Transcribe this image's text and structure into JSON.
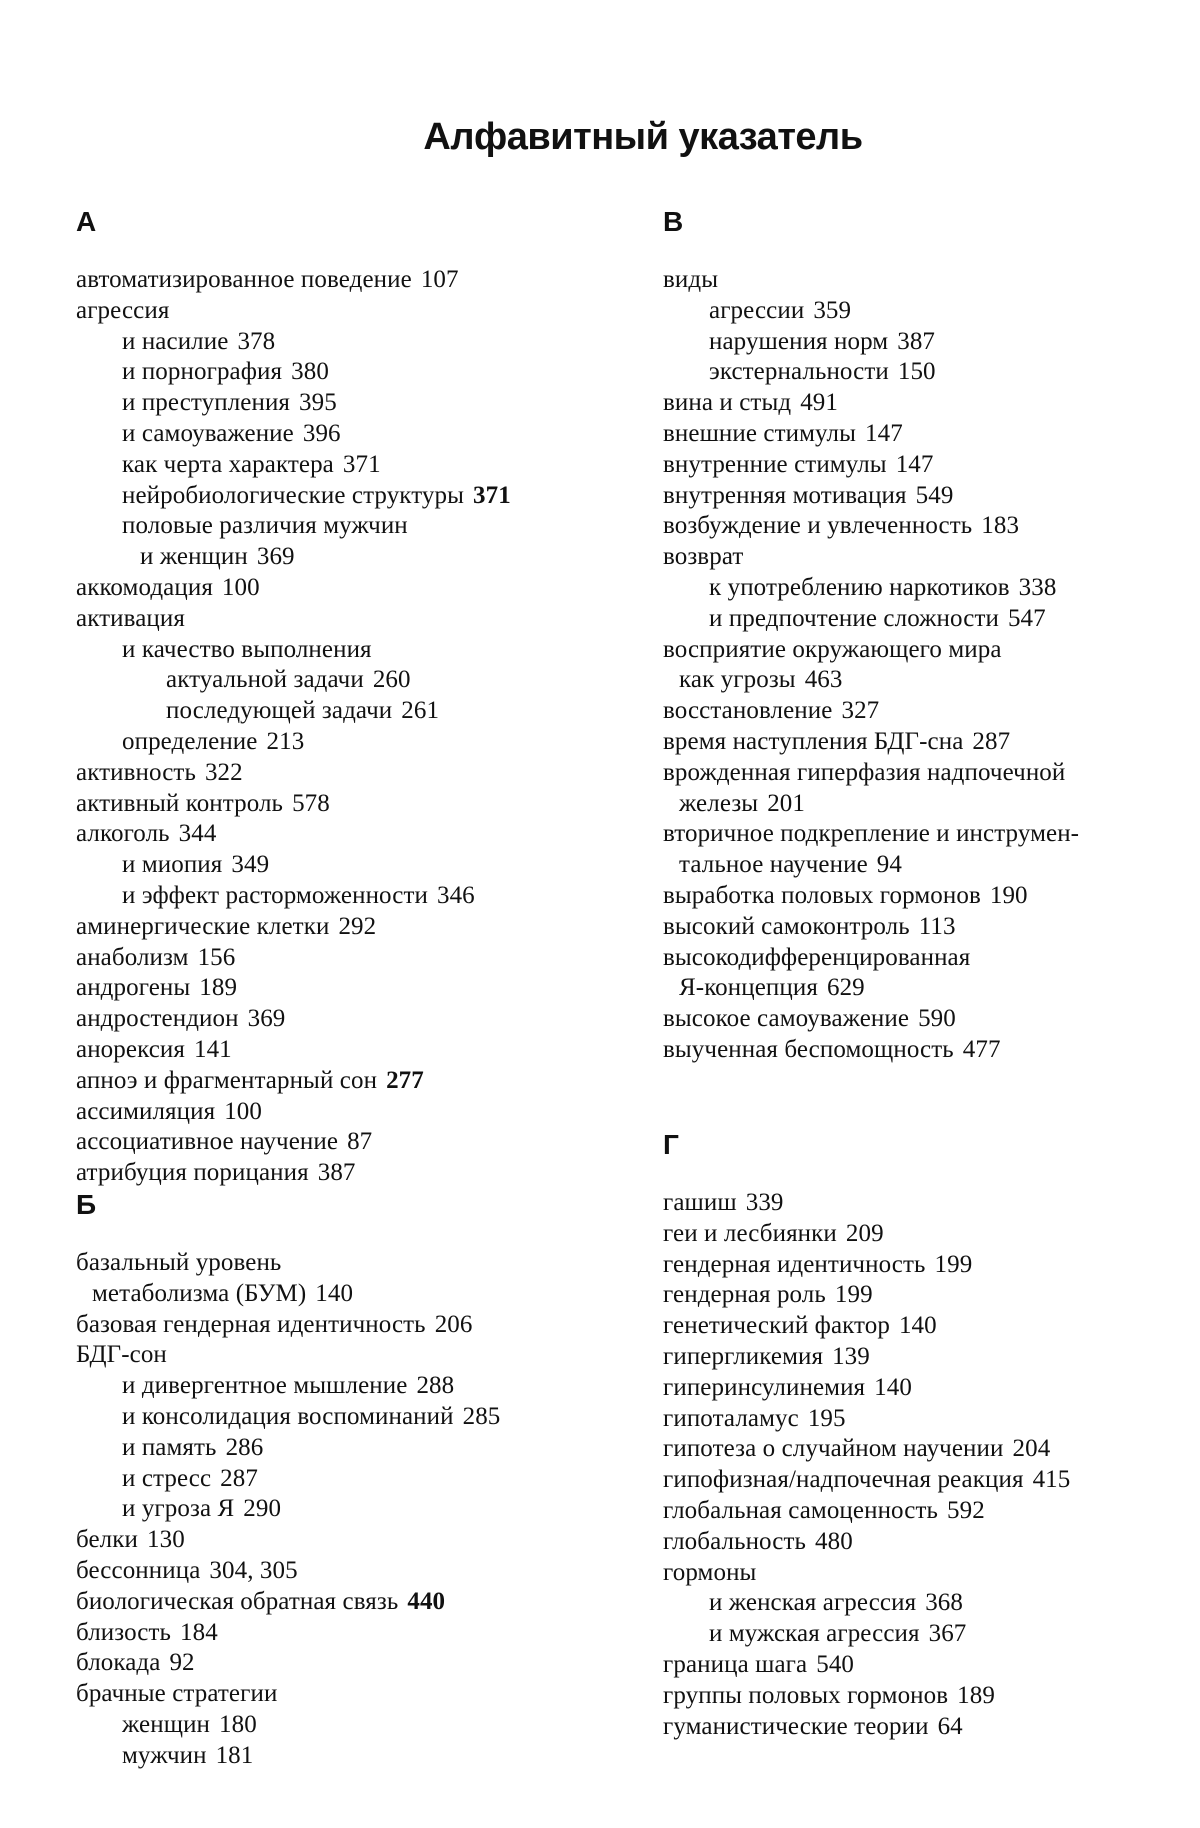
{
  "title": "Алфавитный указатель",
  "sections": [
    {
      "letter": "А",
      "entries": [
        {
          "level": "0",
          "term": "автоматизированное поведение",
          "pages": "107"
        },
        {
          "level": "0",
          "term": "агрессия",
          "pages": ""
        },
        {
          "level": "1",
          "term": "и насилие",
          "pages": "378"
        },
        {
          "level": "1",
          "term": "и порнография",
          "pages": "380"
        },
        {
          "level": "1",
          "term": "и преступления",
          "pages": "395"
        },
        {
          "level": "1",
          "term": "и самоуважение",
          "pages": "396"
        },
        {
          "level": "1",
          "term": "как черта характера",
          "pages": "371"
        },
        {
          "level": "1",
          "term": "нейробиологические структуры",
          "pages": "371",
          "bold": true
        },
        {
          "level": "1",
          "term": "половые различия мужчин",
          "pages": ""
        },
        {
          "level": "c1",
          "term": "и женщин",
          "pages": "369"
        },
        {
          "level": "0",
          "term": "аккомодация",
          "pages": "100"
        },
        {
          "level": "0",
          "term": "активация",
          "pages": ""
        },
        {
          "level": "1",
          "term": "и качество выполнения",
          "pages": ""
        },
        {
          "level": "2",
          "term": "актуальной задачи",
          "pages": "260"
        },
        {
          "level": "2",
          "term": "последующей задачи",
          "pages": "261"
        },
        {
          "level": "1",
          "term": "определение",
          "pages": "213"
        },
        {
          "level": "0",
          "term": "активность",
          "pages": "322"
        },
        {
          "level": "0",
          "term": "активный контроль",
          "pages": "578"
        },
        {
          "level": "0",
          "term": "алкоголь",
          "pages": "344"
        },
        {
          "level": "1",
          "term": "и миопия",
          "pages": "349"
        },
        {
          "level": "1",
          "term": "и эффект расторможенности",
          "pages": "346"
        },
        {
          "level": "0",
          "term": "аминергические клетки",
          "pages": "292"
        },
        {
          "level": "0",
          "term": "анаболизм",
          "pages": "156"
        },
        {
          "level": "0",
          "term": "андрогены",
          "pages": "189"
        },
        {
          "level": "0",
          "term": "андростендион",
          "pages": "369"
        },
        {
          "level": "0",
          "term": "анорексия",
          "pages": "141"
        },
        {
          "level": "0",
          "term": "апноэ и фрагментарный сон",
          "pages": "277",
          "bold": true
        },
        {
          "level": "0",
          "term": "ассимиляция",
          "pages": "100"
        },
        {
          "level": "0",
          "term": "ассоциативное научение",
          "pages": "87"
        },
        {
          "level": "0",
          "term": "атрибуция порицания",
          "pages": "387"
        }
      ]
    },
    {
      "letter": "Б",
      "entries": [
        {
          "level": "0",
          "term": "базальный уровень",
          "pages": ""
        },
        {
          "level": "c0",
          "term": "метаболизма (БУМ)",
          "pages": "140"
        },
        {
          "level": "0",
          "term": "базовая гендерная идентичность",
          "pages": "206"
        },
        {
          "level": "0",
          "term": "БДГ-сон",
          "pages": ""
        },
        {
          "level": "1",
          "term": "и дивергентное мышление",
          "pages": "288"
        },
        {
          "level": "1",
          "term": "и консолидация воспоминаний",
          "pages": "285"
        },
        {
          "level": "1",
          "term": "и память",
          "pages": "286"
        },
        {
          "level": "1",
          "term": "и стресс",
          "pages": "287"
        },
        {
          "level": "1",
          "term": "и угроза Я",
          "pages": "290"
        },
        {
          "level": "0",
          "term": "белки",
          "pages": "130"
        },
        {
          "level": "0",
          "term": "бессонница",
          "pages": "304, 305"
        },
        {
          "level": "0",
          "term": "биологическая обратная связь",
          "pages": "440",
          "bold": true
        },
        {
          "level": "0",
          "term": "близость",
          "pages": "184"
        },
        {
          "level": "0",
          "term": "блокада",
          "pages": "92"
        },
        {
          "level": "0",
          "term": "брачные стратегии",
          "pages": ""
        },
        {
          "level": "1",
          "term": "женщин",
          "pages": "180"
        },
        {
          "level": "1",
          "term": "мужчин",
          "pages": "181"
        }
      ]
    },
    {
      "letter": "В",
      "entries": [
        {
          "level": "0",
          "term": "виды",
          "pages": ""
        },
        {
          "level": "1",
          "term": "агрессии",
          "pages": "359"
        },
        {
          "level": "1",
          "term": "нарушения норм",
          "pages": "387"
        },
        {
          "level": "1",
          "term": "экстернальности",
          "pages": "150"
        },
        {
          "level": "0",
          "term": "вина и стыд",
          "pages": "491"
        },
        {
          "level": "0",
          "term": "внешние стимулы",
          "pages": "147"
        },
        {
          "level": "0",
          "term": "внутренние стимулы",
          "pages": "147"
        },
        {
          "level": "0",
          "term": "внутренняя мотивация",
          "pages": "549"
        },
        {
          "level": "0",
          "term": "возбуждение и увлеченность",
          "pages": "183"
        },
        {
          "level": "0",
          "term": "возврат",
          "pages": ""
        },
        {
          "level": "1",
          "term": "к употреблению наркотиков",
          "pages": "338"
        },
        {
          "level": "1",
          "term": "и предпочтение сложности",
          "pages": "547"
        },
        {
          "level": "0",
          "term": "восприятие окружающего мира",
          "pages": ""
        },
        {
          "level": "c0",
          "term": "как угрозы",
          "pages": "463"
        },
        {
          "level": "0",
          "term": "восстановление",
          "pages": "327"
        },
        {
          "level": "0",
          "term": "время наступления БДГ-сна",
          "pages": "287"
        },
        {
          "level": "0",
          "term": "врожденная гиперфазия надпочечной",
          "pages": ""
        },
        {
          "level": "c0",
          "term": "железы",
          "pages": "201"
        },
        {
          "level": "0",
          "term": "вторичное подкрепление и инструмен-",
          "pages": ""
        },
        {
          "level": "c0",
          "term": "тальное научение",
          "pages": "94"
        },
        {
          "level": "0",
          "term": "выработка половых гормонов",
          "pages": "190"
        },
        {
          "level": "0",
          "term": "высокий самоконтроль",
          "pages": "113"
        },
        {
          "level": "0",
          "term": "высокодифференцированная",
          "pages": ""
        },
        {
          "level": "c0",
          "term": "Я-концепция",
          "pages": "629"
        },
        {
          "level": "0",
          "term": "высокое самоуважение",
          "pages": "590"
        },
        {
          "level": "0",
          "term": "выученная беспомощность",
          "pages": "477"
        }
      ]
    },
    {
      "letter": "Г",
      "entries": [
        {
          "level": "0",
          "term": "гашиш",
          "pages": "339"
        },
        {
          "level": "0",
          "term": "геи и лесбиянки",
          "pages": "209"
        },
        {
          "level": "0",
          "term": "гендерная идентичность",
          "pages": "199"
        },
        {
          "level": "0",
          "term": "гендерная роль",
          "pages": "199"
        },
        {
          "level": "0",
          "term": "генетический фактор",
          "pages": "140"
        },
        {
          "level": "0",
          "term": "гипергликемия",
          "pages": "139"
        },
        {
          "level": "0",
          "term": "гиперинсулинемия",
          "pages": "140"
        },
        {
          "level": "0",
          "term": "гипоталамус",
          "pages": "195"
        },
        {
          "level": "0",
          "term": "гипотеза о случайном научении",
          "pages": "204"
        },
        {
          "level": "0",
          "term": "гипофизная/надпочечная реакция",
          "pages": "415"
        },
        {
          "level": "0",
          "term": "глобальная самоценность",
          "pages": "592"
        },
        {
          "level": "0",
          "term": "глобальность",
          "pages": "480"
        },
        {
          "level": "0",
          "term": "гормоны",
          "pages": ""
        },
        {
          "level": "1",
          "term": "и женская агрессия",
          "pages": "368"
        },
        {
          "level": "1",
          "term": "и мужская агрессия",
          "pages": "367"
        },
        {
          "level": "0",
          "term": "граница шага",
          "pages": "540"
        },
        {
          "level": "0",
          "term": "группы половых гормонов",
          "pages": "189"
        },
        {
          "level": "0",
          "term": "гуманистические теории",
          "pages": "64"
        }
      ]
    }
  ]
}
